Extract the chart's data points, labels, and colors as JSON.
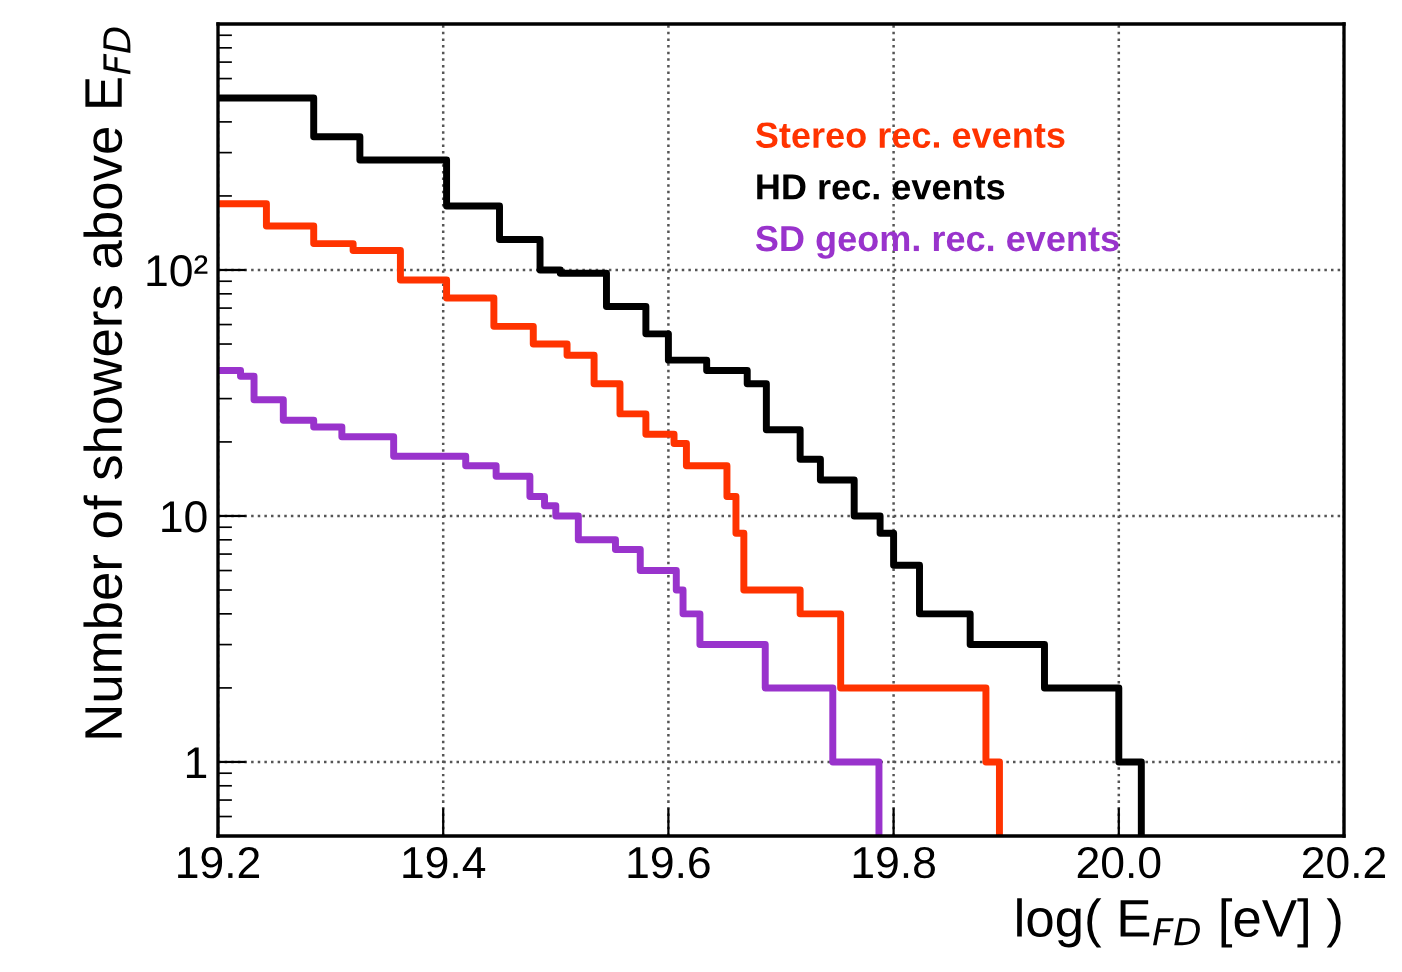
{
  "chart_data": {
    "type": "step",
    "xlabel": "log( E$_{FD}$ [eV] )",
    "ylabel": "Number of showers above E$_{FD}$",
    "log": "y",
    "grid": true,
    "legend": "top right",
    "marker": "none",
    "line_style": "solid",
    "xlim": [
      19.2,
      20.2
    ],
    "xticks": [
      {
        "value": 19.2,
        "label": "19.2"
      },
      {
        "value": 19.4,
        "label": "19.4"
      },
      {
        "value": 19.6,
        "label": "19.6"
      },
      {
        "value": 19.8,
        "label": "19.8"
      },
      {
        "value": 20.0,
        "label": "20.0"
      },
      {
        "value": 20.2,
        "label": "20.2"
      }
    ],
    "ylim": [
      0.5,
      1000
    ],
    "yticks": [
      {
        "value": 1,
        "label": "1"
      },
      {
        "value": 10,
        "label": "10"
      },
      {
        "value": 100,
        "label": "10²"
      }
    ],
    "series": [
      {
        "name": "Stereo rec. events",
        "color": "#ff3300",
        "x": [
          19.2,
          19.243,
          19.285,
          19.32,
          19.362,
          19.403,
          19.445,
          19.48,
          19.51,
          19.534,
          19.557,
          19.58,
          19.605,
          19.616,
          19.652,
          19.66,
          19.667,
          19.717,
          19.753,
          19.882,
          19.894
        ],
        "values": [
          186,
          151,
          128,
          120,
          91,
          77,
          59,
          50,
          45,
          34.5,
          26,
          21.5,
          19.7,
          16,
          12,
          8.5,
          5,
          4,
          2,
          1,
          0.5
        ]
      },
      {
        "name": "HD rec. events",
        "color": "#000000",
        "x": [
          19.2,
          19.285,
          19.326,
          19.403,
          19.45,
          19.486,
          19.504,
          19.545,
          19.58,
          19.6,
          19.634,
          19.67,
          19.687,
          19.717,
          19.735,
          19.765,
          19.788,
          19.8,
          19.823,
          19.868,
          19.934,
          20.0,
          20.02
        ],
        "values": [
          500,
          348,
          280,
          182,
          133,
          100,
          97,
          71,
          55,
          43,
          39,
          34.5,
          22.4,
          17,
          14,
          10,
          8.5,
          6.3,
          4,
          3,
          2,
          1,
          0.5
        ]
      },
      {
        "name": "SD geom. rec. events",
        "color": "#9933cc",
        "x": [
          19.2,
          19.22,
          19.232,
          19.258,
          19.285,
          19.31,
          19.356,
          19.42,
          19.447,
          19.477,
          19.49,
          19.5,
          19.52,
          19.553,
          19.575,
          19.607,
          19.613,
          19.628,
          19.686,
          19.746,
          19.787
        ],
        "values": [
          39,
          37,
          29.7,
          24.5,
          23,
          21,
          17.5,
          16,
          14.5,
          12,
          11,
          10,
          8,
          7.3,
          6,
          5,
          4,
          3,
          2,
          1,
          0.5
        ]
      }
    ]
  }
}
